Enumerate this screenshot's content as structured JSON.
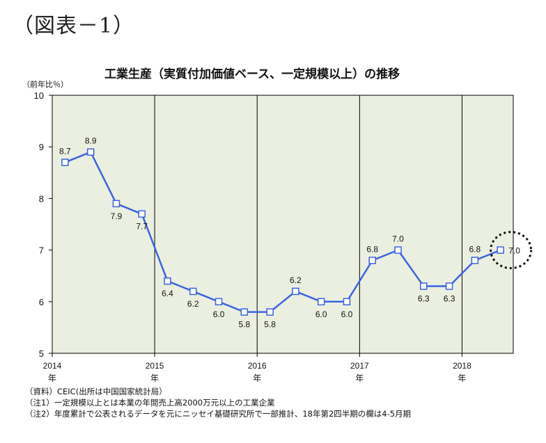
{
  "figure_label": "（図表－1）",
  "chart_data": {
    "type": "line",
    "title": "工業生産（実質付加価値ベース、一定規模以上）の推移",
    "ylabel": "（前年比％）",
    "ylim": [
      5,
      10
    ],
    "yticks": [
      "5",
      "6",
      "7",
      "8",
      "9",
      "10"
    ],
    "year_labels": [
      {
        "year": "2014",
        "suffix": "年"
      },
      {
        "year": "2015",
        "suffix": "年"
      },
      {
        "year": "2016",
        "suffix": "年"
      },
      {
        "year": "2017",
        "suffix": "年"
      },
      {
        "year": "2018",
        "suffix": "年"
      }
    ],
    "series": [
      {
        "values": [
          8.7,
          8.9,
          7.9,
          7.7,
          6.4,
          6.2,
          6.0,
          5.8,
          5.8,
          6.2,
          6.0,
          6.0,
          6.8,
          7.0,
          6.3,
          6.3,
          6.8,
          7.0
        ],
        "labels": [
          "8.7",
          "8.9",
          "7.9",
          "7.7",
          "6.4",
          "6.2",
          "6.0",
          "5.8",
          "5.8",
          "6.2",
          "6.0",
          "6.0",
          "6.8",
          "7.0",
          "6.3",
          "6.3",
          "6.8",
          "7.0"
        ],
        "label_position": [
          "above",
          "above",
          "below",
          "below",
          "below",
          "below",
          "below",
          "below",
          "below",
          "above",
          "below",
          "below",
          "above",
          "above",
          "below",
          "below",
          "above",
          "inside"
        ]
      }
    ],
    "highlight_last_point": true,
    "grid": false,
    "plot_background": "#ebefdf",
    "line_color": "#3b63e0",
    "marker_fill": "#ffffff",
    "marker_stroke": "#3b63e0",
    "divider_color": "#000000"
  },
  "notes": [
    "（資料）CEIC(出所は中国国家統計局）",
    "（注1）一定規模以上とは本業の年間売上高2000万元以上の工業企業",
    "（注2）年度累計で公表されるデータを元にニッセイ基礎研究所で一部推計、18年第2四半期の欄は4-5月期"
  ]
}
